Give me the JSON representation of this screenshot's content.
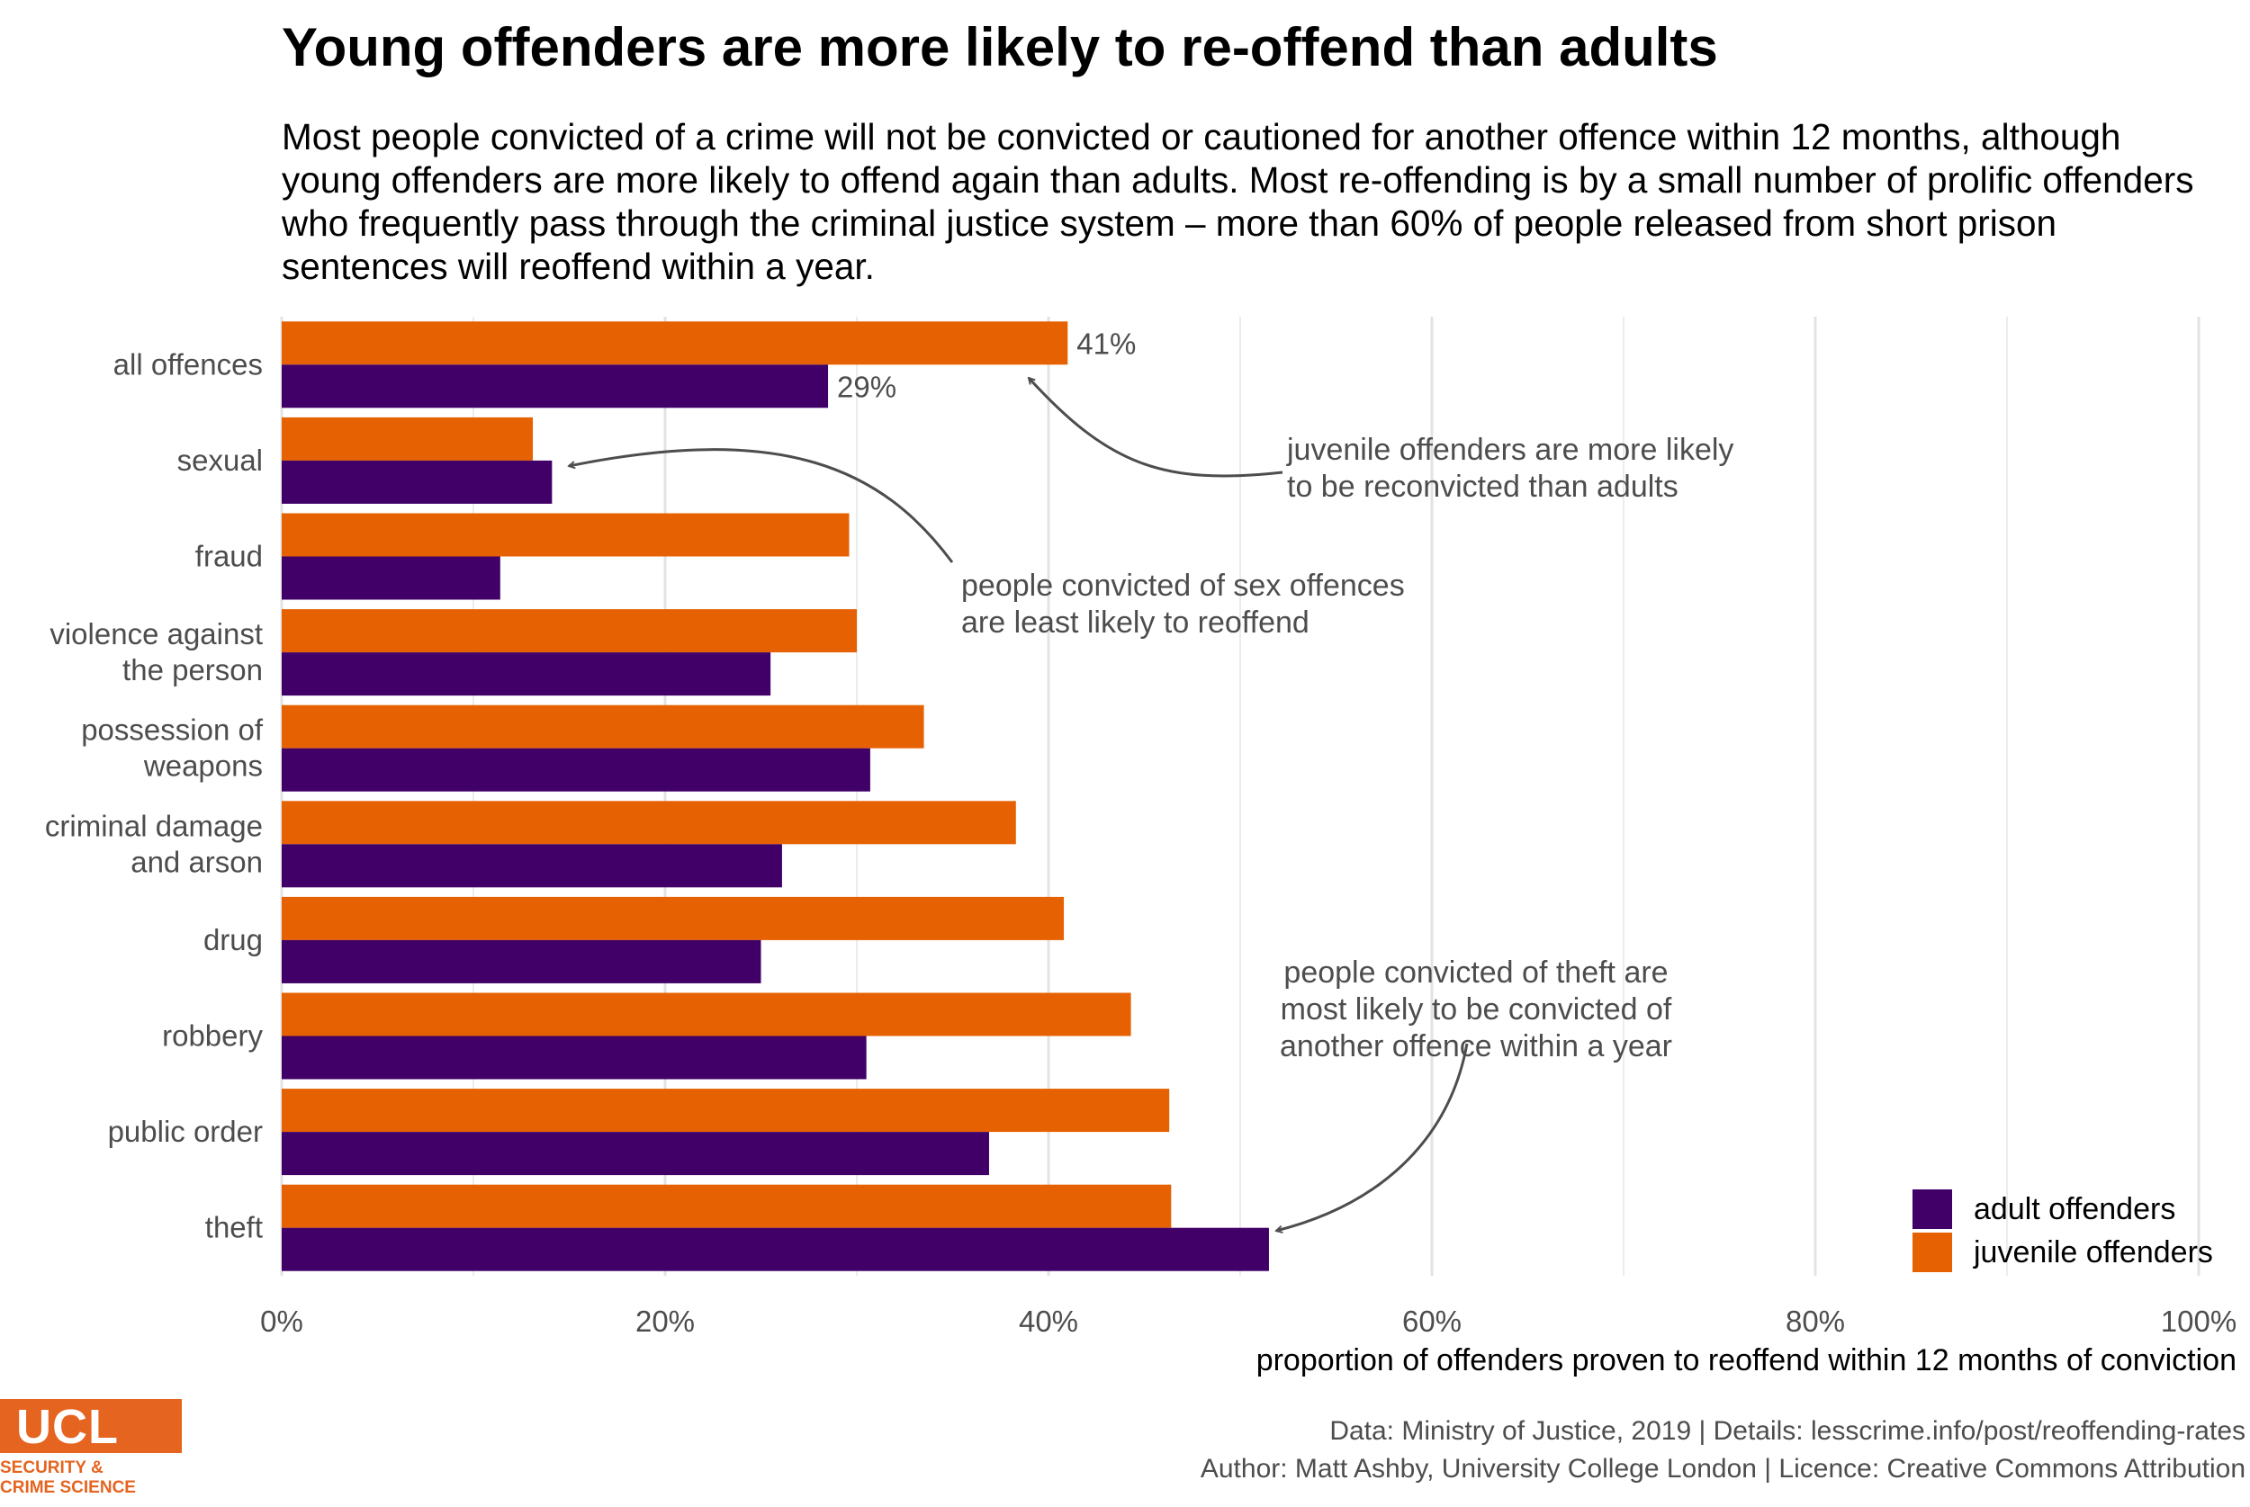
{
  "title": "Young offenders are more likely to re-offend than adults",
  "subtitle": "Most people convicted of a crime will not be convicted or cautioned for another offence within 12 months, although young offenders are more likely to offend again than adults. Most re-offending is by a small number of prolific offenders who frequently pass through the criminal justice system – more than 60% of people released from short prison sentences will reoffend within a year.",
  "chart_data": {
    "type": "bar",
    "orientation": "horizontal",
    "categories": [
      [
        "all offences"
      ],
      [
        "sexual"
      ],
      [
        "fraud"
      ],
      [
        "violence against",
        "the person"
      ],
      [
        "possession of",
        "weapons"
      ],
      [
        "criminal damage",
        "and arson"
      ],
      [
        "drug"
      ],
      [
        "robbery"
      ],
      [
        "public order"
      ],
      [
        "theft"
      ]
    ],
    "series": [
      {
        "name": "juvenile offenders",
        "color": "#e66101",
        "values": [
          41,
          13.1,
          29.6,
          30.0,
          33.5,
          38.3,
          40.8,
          44.3,
          46.3,
          46.4
        ]
      },
      {
        "name": "adult offenders",
        "color": "#400068",
        "values": [
          28.5,
          14.1,
          11.4,
          25.5,
          30.7,
          26.1,
          25.0,
          30.5,
          36.9,
          51.5
        ]
      }
    ],
    "data_labels": [
      {
        "series": "juvenile offenders",
        "category": "all offences",
        "text": "41%"
      },
      {
        "series": "adult offenders",
        "category": "all offences",
        "text": "29%"
      }
    ],
    "xlim": [
      0,
      100
    ],
    "xticks": [
      0,
      20,
      40,
      60,
      80,
      100
    ],
    "xtick_labels": [
      "0%",
      "20%",
      "40%",
      "60%",
      "80%",
      "100%"
    ],
    "xlabel": "proportion of offenders proven to reoffend within 12 months of conviction",
    "grid": true,
    "legend": {
      "position": "bottom-right",
      "entries": [
        {
          "label": "adult offenders",
          "color": "#400068"
        },
        {
          "label": "juvenile offenders",
          "color": "#e66101"
        }
      ]
    },
    "annotations": [
      {
        "lines": [
          "juvenile offenders are more likely",
          "to be reconvicted than adults"
        ]
      },
      {
        "lines": [
          "people convicted of sex offences",
          "are least likely to reoffend"
        ]
      },
      {
        "lines": [
          "people convicted of theft are",
          "most likely to be convicted of",
          "another offence within a year"
        ]
      }
    ]
  },
  "caption": {
    "line1": "Data: Ministry of Justice, 2019 |  Details: lesscrime.info/post/reoffending-rates",
    "line2": "Author: Matt Ashby, University College London |  Licence: Creative Commons Attribution"
  },
  "logo": {
    "text": "UCL",
    "sub1": "SECURITY &",
    "sub2": "CRIME SCIENCE"
  }
}
